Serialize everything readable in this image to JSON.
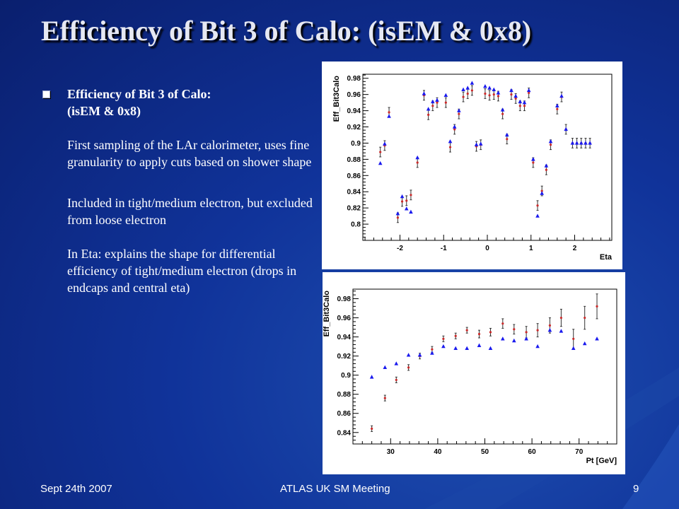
{
  "slide": {
    "title": "Efficiency of Bit 3 of Calo: (isEM & 0x8)",
    "bullet": {
      "heading_line1": "Efficiency of Bit 3 of Calo:",
      "heading_line2": "(isEM & 0x8)",
      "paragraphs": [
        "First sampling of the LAr calorimeter, uses fine granularity to apply cuts based on shower shape",
        "Included in tight/medium electron, but excluded from loose electron",
        "In Eta: explains the shape for differential efficiency of tight/medium electron (drops in endcaps and central eta)"
      ]
    },
    "footer": {
      "date": "Sept 24th 2007",
      "meeting": "ATLAS UK SM Meeting",
      "page": "9"
    }
  },
  "colors": {
    "background": "#10339a",
    "marker_red": "#cc2a2a",
    "marker_blue": "#1a1aee",
    "error_bar": "#333333"
  },
  "chart_data": [
    {
      "type": "scatter",
      "xlabel": "Eta",
      "ylabel": "Eff_Bit3Calo",
      "xlim": [
        -2.85,
        2.85
      ],
      "ylim": [
        0.78,
        0.985
      ],
      "xticks": [
        -2,
        -1,
        0,
        1,
        2
      ],
      "yticks": [
        0.8,
        0.82,
        0.84,
        0.86,
        0.88,
        0.9,
        0.92,
        0.94,
        0.96,
        0.98
      ],
      "ytick_labels": [
        "0.8",
        "0.82",
        "0.84",
        "0.86",
        "0.88",
        "0.9",
        "0.92",
        "0.94",
        "0.96",
        "0.98"
      ],
      "grid": false,
      "series": [
        {
          "marker": "circle-with-error-bars",
          "color": "#cc2a2a",
          "x": [
            -2.45,
            -2.35,
            -2.25,
            -2.05,
            -1.95,
            -1.85,
            -1.75,
            -1.6,
            -1.45,
            -1.35,
            -1.25,
            -1.15,
            -0.95,
            -0.85,
            -0.75,
            -0.65,
            -0.55,
            -0.45,
            -0.35,
            -0.25,
            -0.15,
            -0.05,
            0.05,
            0.15,
            0.25,
            0.35,
            0.45,
            0.55,
            0.65,
            0.75,
            0.85,
            0.95,
            1.05,
            1.15,
            1.25,
            1.35,
            1.45,
            1.6,
            1.7,
            1.8,
            1.95,
            2.05,
            2.15,
            2.25,
            2.35
          ],
          "y": [
            0.889,
            0.897,
            0.938,
            0.808,
            0.828,
            0.829,
            0.836,
            0.876,
            0.959,
            0.935,
            0.946,
            0.95,
            0.95,
            0.895,
            0.917,
            0.936,
            0.957,
            0.961,
            0.965,
            0.896,
            0.898,
            0.961,
            0.959,
            0.96,
            0.958,
            0.936,
            0.905,
            0.96,
            0.955,
            0.946,
            0.946,
            0.962,
            0.876,
            0.823,
            0.841,
            0.867,
            0.898,
            0.942,
            0.957,
            0.917,
            0.9,
            0.9,
            0.9,
            0.9,
            0.9
          ],
          "yerr": 0.006
        },
        {
          "marker": "triangle",
          "color": "#1a1aee",
          "x": [
            -2.45,
            -2.35,
            -2.25,
            -2.05,
            -1.95,
            -1.85,
            -1.75,
            -1.6,
            -1.45,
            -1.35,
            -1.25,
            -1.15,
            -0.95,
            -0.85,
            -0.75,
            -0.65,
            -0.55,
            -0.45,
            -0.35,
            -0.25,
            -0.15,
            -0.05,
            0.05,
            0.15,
            0.25,
            0.35,
            0.45,
            0.55,
            0.65,
            0.75,
            0.85,
            0.95,
            1.05,
            1.15,
            1.25,
            1.35,
            1.45,
            1.6,
            1.7,
            1.8,
            1.95,
            2.05,
            2.15,
            2.25,
            2.35
          ],
          "y": [
            0.875,
            0.899,
            0.933,
            0.813,
            0.834,
            0.819,
            0.815,
            0.882,
            0.961,
            0.942,
            0.951,
            0.953,
            0.959,
            0.902,
            0.92,
            0.94,
            0.966,
            0.968,
            0.974,
            0.898,
            0.899,
            0.97,
            0.968,
            0.966,
            0.962,
            0.941,
            0.91,
            0.965,
            0.958,
            0.951,
            0.95,
            0.965,
            0.88,
            0.81,
            0.838,
            0.872,
            0.902,
            0.946,
            0.958,
            0.917,
            0.9,
            0.9,
            0.9,
            0.9,
            0.9
          ]
        }
      ]
    },
    {
      "type": "scatter",
      "xlabel": "Pt [GeV]",
      "ylabel": "Eff_Bit3Calo",
      "xlim": [
        22,
        78
      ],
      "ylim": [
        0.828,
        0.99
      ],
      "xticks": [
        30,
        40,
        50,
        60,
        70
      ],
      "yticks": [
        0.84,
        0.86,
        0.88,
        0.9,
        0.92,
        0.94,
        0.96,
        0.98
      ],
      "ytick_labels": [
        "0.84",
        "0.86",
        "0.88",
        "0.9",
        "0.92",
        "0.94",
        "0.96",
        "0.98"
      ],
      "grid": false,
      "series": [
        {
          "marker": "circle-with-error-bars",
          "color": "#cc2a2a",
          "x": [
            26,
            28.8,
            31.2,
            33.8,
            36.2,
            38.8,
            41.2,
            43.8,
            46.2,
            48.8,
            51.2,
            53.8,
            56.2,
            58.8,
            61.2,
            63.8,
            66.2,
            68.8,
            71.2,
            73.8
          ],
          "y": [
            0.844,
            0.876,
            0.895,
            0.908,
            0.92,
            0.927,
            0.938,
            0.941,
            0.947,
            0.943,
            0.945,
            0.954,
            0.948,
            0.945,
            0.947,
            0.952,
            0.96,
            0.938,
            0.96,
            0.972
          ],
          "yerr": [
            0.003,
            0.003,
            0.003,
            0.003,
            0.003,
            0.003,
            0.003,
            0.003,
            0.003,
            0.004,
            0.004,
            0.005,
            0.005,
            0.006,
            0.007,
            0.008,
            0.009,
            0.01,
            0.012,
            0.013
          ]
        },
        {
          "marker": "triangle",
          "color": "#1a1aee",
          "x": [
            26,
            28.8,
            31.2,
            33.8,
            36.2,
            38.8,
            41.2,
            43.8,
            46.2,
            48.8,
            51.2,
            53.8,
            56.2,
            58.8,
            61.2,
            63.8,
            66.2,
            68.8,
            71.2,
            73.8
          ],
          "y": [
            0.898,
            0.908,
            0.912,
            0.921,
            0.921,
            0.923,
            0.93,
            0.928,
            0.928,
            0.931,
            0.928,
            0.938,
            0.936,
            0.938,
            0.93,
            0.947,
            0.946,
            0.928,
            0.933,
            0.938
          ]
        }
      ]
    }
  ]
}
